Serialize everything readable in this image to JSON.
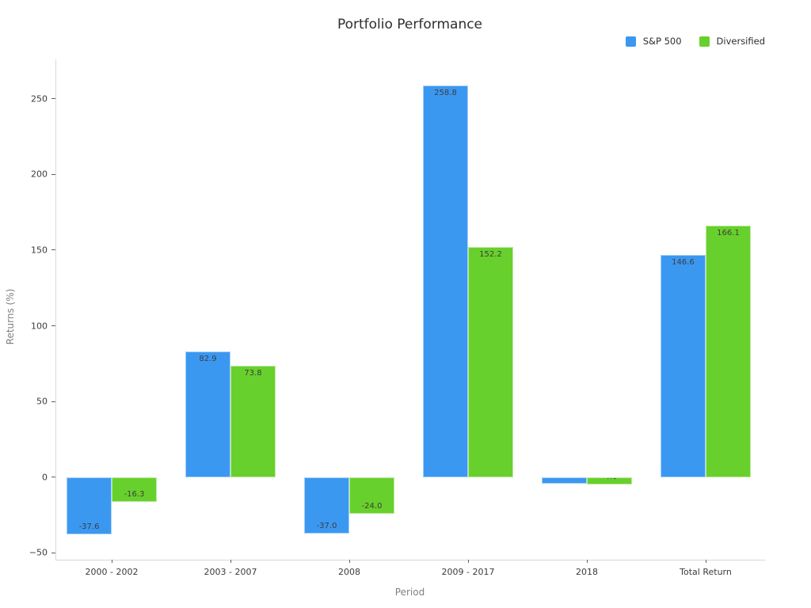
{
  "chart_data": {
    "type": "bar",
    "title": "Portfolio Performance",
    "xlabel": "Period",
    "ylabel": "Returns (%)",
    "categories": [
      "2000 - 2002",
      "2003 - 2007",
      "2008",
      "2009 - 2017",
      "2018",
      "Total Return"
    ],
    "series": [
      {
        "name": "S&P 500",
        "color": "#3b98f1",
        "values": [
          -37.6,
          82.9,
          -37.0,
          258.8,
          -4.4,
          146.6
        ]
      },
      {
        "name": "Diversified",
        "color": "#68d02c",
        "values": [
          -16.3,
          73.8,
          -24.0,
          152.2,
          -4.6,
          166.1
        ]
      }
    ],
    "yticks": [
      -50,
      0,
      50,
      100,
      150,
      200,
      250
    ],
    "ylim": [
      -54.5,
      276
    ],
    "grid": false,
    "legend_position": "top-right",
    "bar_label_format": "one-decimal"
  }
}
